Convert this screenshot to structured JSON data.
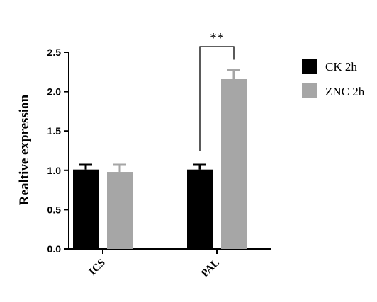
{
  "chart_data": {
    "type": "bar",
    "categories": [
      "ICS",
      "PAL"
    ],
    "series": [
      {
        "name": "CK 2h",
        "values": [
          1.01,
          1.01
        ],
        "errors": [
          0.06,
          0.06
        ],
        "color": "#000000"
      },
      {
        "name": "ZNC 2h",
        "values": [
          0.98,
          2.16
        ],
        "errors": [
          0.09,
          0.12
        ],
        "color": "#a6a6a6"
      }
    ],
    "xlabel": "",
    "ylabel": "Realtive expression",
    "ylim": [
      0.0,
      2.5
    ],
    "yticks": [
      "0.0",
      "0.5",
      "1.0",
      "1.5",
      "2.0",
      "2.5"
    ],
    "significance": {
      "category": "PAL",
      "label": "**"
    },
    "legend_position": "right",
    "grid": false
  }
}
